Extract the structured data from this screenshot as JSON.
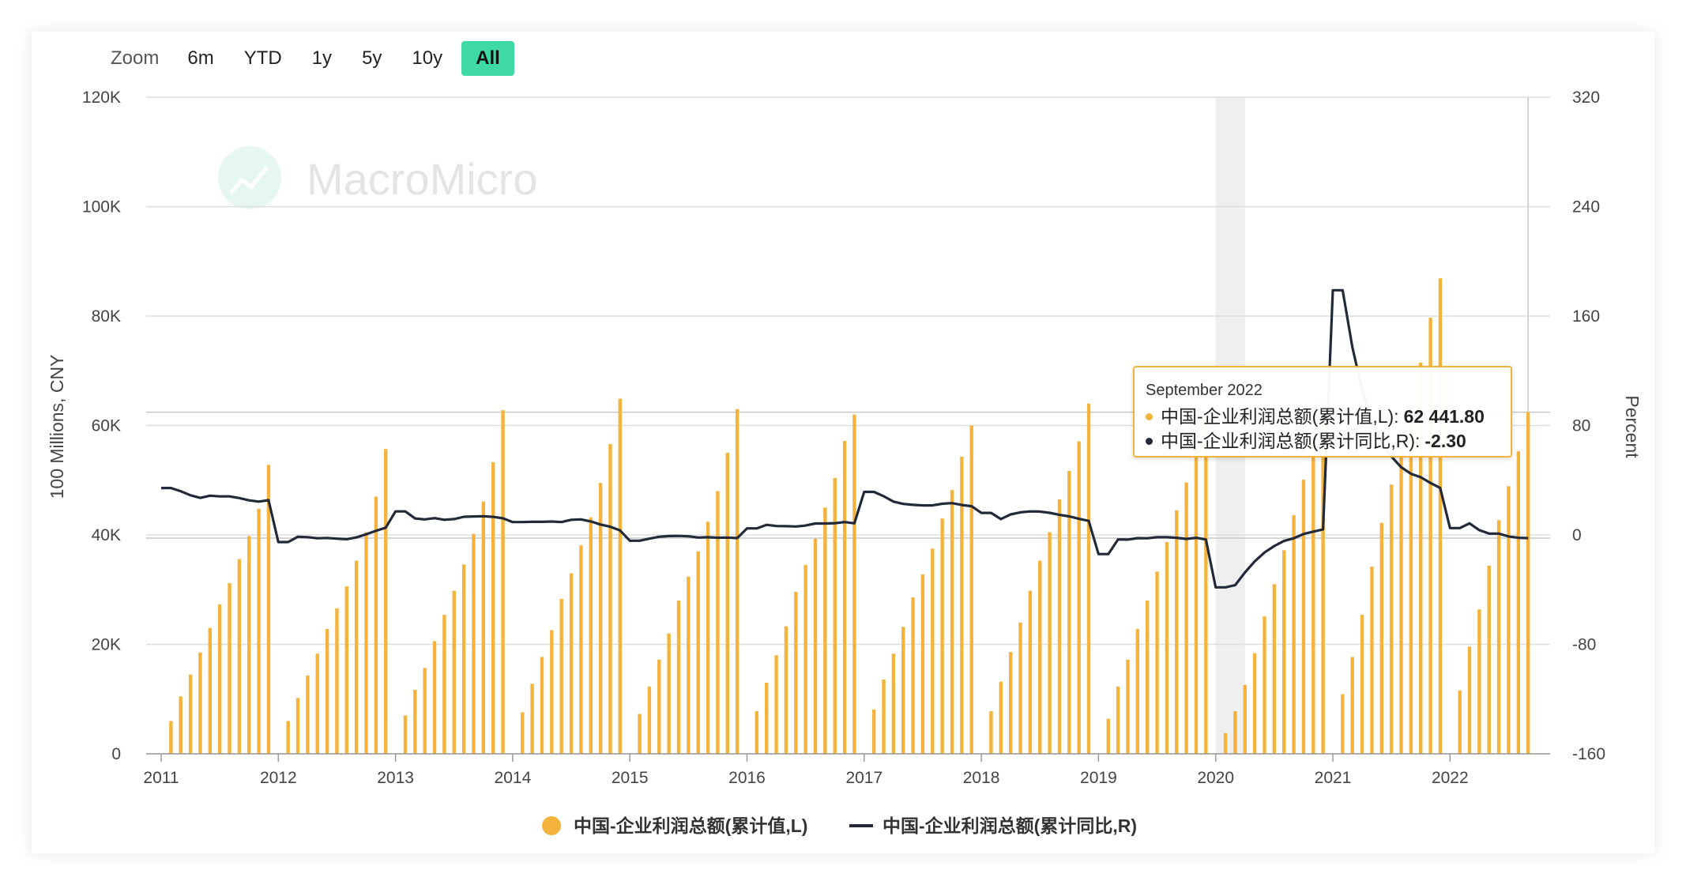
{
  "toolbar": {
    "zoom_label": "Zoom",
    "buttons": [
      "6m",
      "YTD",
      "1y",
      "5y",
      "10y",
      "All"
    ],
    "active": "All"
  },
  "watermark": "MacroMicro",
  "tooltip": {
    "title": "September 2022",
    "rows": [
      {
        "label": "中国-企业利润总额(累计值,L):",
        "value": "62 441.80",
        "color": "#f3b33d"
      },
      {
        "label": "中国-企业利润总额(累计同比,R):",
        "value": "-2.30",
        "color": "#222a3a"
      }
    ]
  },
  "legend": [
    {
      "label": "中国-企业利润总额(累计值,L)",
      "color": "#f3b33d"
    },
    {
      "label": "中国-企业利润总额(累计同比,R)",
      "color": "#222a3a"
    }
  ],
  "colors": {
    "bar": "#f3b33d",
    "line": "#222a3a",
    "accent": "#3fd9a6",
    "recession": "#efefef"
  },
  "chart_data": {
    "type": "bar+line",
    "y_left": {
      "label": "100 Millions, CNY",
      "ylim": [
        0,
        120000
      ],
      "ticks": [
        "0",
        "20K",
        "40K",
        "60K",
        "80K",
        "100K",
        "120K"
      ],
      "tick_values": [
        0,
        20000,
        40000,
        60000,
        80000,
        100000,
        120000
      ]
    },
    "y_right": {
      "label": "Percent",
      "ylim": [
        -160,
        320
      ],
      "ticks": [
        "-160",
        "-80",
        "0",
        "80",
        "160",
        "240",
        "320"
      ],
      "tick_values": [
        -160,
        -80,
        0,
        80,
        160,
        240,
        320
      ]
    },
    "x_ticks": [
      "2011",
      "2012",
      "2013",
      "2014",
      "2015",
      "2016",
      "2017",
      "2018",
      "2019",
      "2020",
      "2021",
      "2022"
    ],
    "x_range": [
      "2011-01",
      "2022-12"
    ],
    "recession_shading": {
      "from": "2020-01",
      "to": "2020-04"
    },
    "bar_series": {
      "name": "中国-企业利润总额(累计值,L)",
      "data": [
        [
          "2011-02",
          6000
        ],
        [
          "2011-03",
          10500
        ],
        [
          "2011-04",
          14500
        ],
        [
          "2011-05",
          18500
        ],
        [
          "2011-06",
          23000
        ],
        [
          "2011-07",
          27300
        ],
        [
          "2011-08",
          31200
        ],
        [
          "2011-09",
          35600
        ],
        [
          "2011-10",
          39800
        ],
        [
          "2011-11",
          44800
        ],
        [
          "2011-12",
          52800
        ],
        [
          "2012-02",
          6000
        ],
        [
          "2012-03",
          10200
        ],
        [
          "2012-04",
          14300
        ],
        [
          "2012-05",
          18300
        ],
        [
          "2012-06",
          22800
        ],
        [
          "2012-07",
          26600
        ],
        [
          "2012-08",
          30600
        ],
        [
          "2012-09",
          35300
        ],
        [
          "2012-10",
          40500
        ],
        [
          "2012-11",
          47000
        ],
        [
          "2012-12",
          55700
        ],
        [
          "2013-02",
          7000
        ],
        [
          "2013-03",
          11700
        ],
        [
          "2013-04",
          15700
        ],
        [
          "2013-05",
          20600
        ],
        [
          "2013-06",
          25400
        ],
        [
          "2013-07",
          29800
        ],
        [
          "2013-08",
          34600
        ],
        [
          "2013-09",
          40200
        ],
        [
          "2013-10",
          46100
        ],
        [
          "2013-11",
          53300
        ],
        [
          "2013-12",
          62800
        ],
        [
          "2014-02",
          7600
        ],
        [
          "2014-03",
          12800
        ],
        [
          "2014-04",
          17700
        ],
        [
          "2014-05",
          22600
        ],
        [
          "2014-06",
          28300
        ],
        [
          "2014-07",
          33000
        ],
        [
          "2014-08",
          38100
        ],
        [
          "2014-09",
          43200
        ],
        [
          "2014-10",
          49500
        ],
        [
          "2014-11",
          56600
        ],
        [
          "2014-12",
          64900
        ],
        [
          "2015-02",
          7300
        ],
        [
          "2015-03",
          12300
        ],
        [
          "2015-04",
          17200
        ],
        [
          "2015-05",
          22000
        ],
        [
          "2015-06",
          28000
        ],
        [
          "2015-07",
          32400
        ],
        [
          "2015-08",
          37000
        ],
        [
          "2015-09",
          42400
        ],
        [
          "2015-10",
          48000
        ],
        [
          "2015-11",
          55000
        ],
        [
          "2015-12",
          63000
        ],
        [
          "2016-02",
          7800
        ],
        [
          "2016-03",
          13000
        ],
        [
          "2016-04",
          18000
        ],
        [
          "2016-05",
          23300
        ],
        [
          "2016-06",
          29600
        ],
        [
          "2016-07",
          34500
        ],
        [
          "2016-08",
          39300
        ],
        [
          "2016-09",
          45000
        ],
        [
          "2016-10",
          50400
        ],
        [
          "2016-11",
          57200
        ],
        [
          "2016-12",
          62000
        ],
        [
          "2017-02",
          8100
        ],
        [
          "2017-03",
          13600
        ],
        [
          "2017-04",
          18300
        ],
        [
          "2017-05",
          23200
        ],
        [
          "2017-06",
          28600
        ],
        [
          "2017-07",
          32800
        ],
        [
          "2017-08",
          37500
        ],
        [
          "2017-09",
          43000
        ],
        [
          "2017-10",
          48200
        ],
        [
          "2017-11",
          54300
        ],
        [
          "2017-12",
          60000
        ],
        [
          "2018-02",
          7800
        ],
        [
          "2018-03",
          13200
        ],
        [
          "2018-04",
          18600
        ],
        [
          "2018-05",
          24000
        ],
        [
          "2018-06",
          29800
        ],
        [
          "2018-07",
          35300
        ],
        [
          "2018-08",
          40500
        ],
        [
          "2018-09",
          46500
        ],
        [
          "2018-10",
          51700
        ],
        [
          "2018-11",
          57100
        ],
        [
          "2018-12",
          64000
        ],
        [
          "2019-02",
          6400
        ],
        [
          "2019-03",
          12300
        ],
        [
          "2019-04",
          17200
        ],
        [
          "2019-05",
          22800
        ],
        [
          "2019-06",
          28000
        ],
        [
          "2019-07",
          33300
        ],
        [
          "2019-08",
          38700
        ],
        [
          "2019-09",
          44500
        ],
        [
          "2019-10",
          49600
        ],
        [
          "2019-11",
          56000
        ],
        [
          "2019-12",
          62000
        ],
        [
          "2020-02",
          3800
        ],
        [
          "2020-03",
          7800
        ],
        [
          "2020-04",
          12600
        ],
        [
          "2020-05",
          18400
        ],
        [
          "2020-06",
          25100
        ],
        [
          "2020-07",
          31000
        ],
        [
          "2020-08",
          37200
        ],
        [
          "2020-09",
          43600
        ],
        [
          "2020-10",
          50100
        ],
        [
          "2020-11",
          56700
        ],
        [
          "2020-12",
          64500
        ],
        [
          "2021-02",
          10900
        ],
        [
          "2021-03",
          17700
        ],
        [
          "2021-04",
          25400
        ],
        [
          "2021-05",
          34200
        ],
        [
          "2021-06",
          42200
        ],
        [
          "2021-07",
          49200
        ],
        [
          "2021-08",
          56000
        ],
        [
          "2021-09",
          63400
        ],
        [
          "2021-10",
          71500
        ],
        [
          "2021-11",
          79700
        ],
        [
          "2021-12",
          86900
        ],
        [
          "2022-02",
          11600
        ],
        [
          "2022-03",
          19600
        ],
        [
          "2022-04",
          26400
        ],
        [
          "2022-05",
          34400
        ],
        [
          "2022-06",
          42700
        ],
        [
          "2022-07",
          48900
        ],
        [
          "2022-08",
          55300
        ],
        [
          "2022-09",
          62441.8
        ]
      ]
    },
    "line_series": {
      "name": "中国-企业利润总额(累计同比,R)",
      "data": [
        [
          "2011-01",
          34.3
        ],
        [
          "2011-02",
          34.3
        ],
        [
          "2011-03",
          32
        ],
        [
          "2011-04",
          29
        ],
        [
          "2011-05",
          27.1
        ],
        [
          "2011-06",
          28.7
        ],
        [
          "2011-07",
          28.2
        ],
        [
          "2011-08",
          28.2
        ],
        [
          "2011-09",
          27
        ],
        [
          "2011-10",
          25.3
        ],
        [
          "2011-11",
          24.4
        ],
        [
          "2011-12",
          25.4
        ],
        [
          "2012-01",
          -5.2
        ],
        [
          "2012-02",
          -5.2
        ],
        [
          "2012-03",
          -1.3
        ],
        [
          "2012-04",
          -1.6
        ],
        [
          "2012-05",
          -2.4
        ],
        [
          "2012-06",
          -2.2
        ],
        [
          "2012-07",
          -2.7
        ],
        [
          "2012-08",
          -3.1
        ],
        [
          "2012-09",
          -1.8
        ],
        [
          "2012-10",
          0.5
        ],
        [
          "2012-11",
          3
        ],
        [
          "2012-12",
          5.3
        ],
        [
          "2013-01",
          17.2
        ],
        [
          "2013-02",
          17.2
        ],
        [
          "2013-03",
          12.1
        ],
        [
          "2013-04",
          11.4
        ],
        [
          "2013-05",
          12.3
        ],
        [
          "2013-06",
          11.1
        ],
        [
          "2013-07",
          11.6
        ],
        [
          "2013-08",
          13.3
        ],
        [
          "2013-09",
          13.5
        ],
        [
          "2013-10",
          13.7
        ],
        [
          "2013-11",
          13.2
        ],
        [
          "2013-12",
          12.2
        ],
        [
          "2014-01",
          9.4
        ],
        [
          "2014-02",
          9.4
        ],
        [
          "2014-03",
          9.6
        ],
        [
          "2014-04",
          9.6
        ],
        [
          "2014-05",
          9.8
        ],
        [
          "2014-06",
          9.4
        ],
        [
          "2014-07",
          11.1
        ],
        [
          "2014-08",
          11.4
        ],
        [
          "2014-09",
          9.9
        ],
        [
          "2014-10",
          7.6
        ],
        [
          "2014-11",
          6
        ],
        [
          "2014-12",
          3.3
        ],
        [
          "2015-01",
          -4.2
        ],
        [
          "2015-02",
          -4.2
        ],
        [
          "2015-03",
          -2.7
        ],
        [
          "2015-04",
          -1.3
        ],
        [
          "2015-05",
          -0.8
        ],
        [
          "2015-06",
          -0.7
        ],
        [
          "2015-07",
          -1
        ],
        [
          "2015-08",
          -1.9
        ],
        [
          "2015-09",
          -1.7
        ],
        [
          "2015-10",
          -2
        ],
        [
          "2015-11",
          -1.9
        ],
        [
          "2015-12",
          -2.3
        ],
        [
          "2016-01",
          4.8
        ],
        [
          "2016-02",
          4.8
        ],
        [
          "2016-03",
          7.4
        ],
        [
          "2016-04",
          6.5
        ],
        [
          "2016-05",
          6.4
        ],
        [
          "2016-06",
          6.2
        ],
        [
          "2016-07",
          6.9
        ],
        [
          "2016-08",
          8.4
        ],
        [
          "2016-09",
          8.4
        ],
        [
          "2016-10",
          8.6
        ],
        [
          "2016-11",
          9.4
        ],
        [
          "2016-12",
          8.5
        ],
        [
          "2017-01",
          31.5
        ],
        [
          "2017-02",
          31.5
        ],
        [
          "2017-03",
          28.3
        ],
        [
          "2017-04",
          24.4
        ],
        [
          "2017-05",
          22.7
        ],
        [
          "2017-06",
          22
        ],
        [
          "2017-07",
          21.6
        ],
        [
          "2017-08",
          21.6
        ],
        [
          "2017-09",
          22.8
        ],
        [
          "2017-10",
          23.3
        ],
        [
          "2017-11",
          21.9
        ],
        [
          "2017-12",
          21
        ],
        [
          "2018-01",
          16.1
        ],
        [
          "2018-02",
          16.1
        ],
        [
          "2018-03",
          11.6
        ],
        [
          "2018-04",
          15
        ],
        [
          "2018-05",
          16.5
        ],
        [
          "2018-06",
          17.2
        ],
        [
          "2018-07",
          17.1
        ],
        [
          "2018-08",
          16.2
        ],
        [
          "2018-09",
          14.7
        ],
        [
          "2018-10",
          13.6
        ],
        [
          "2018-11",
          11.8
        ],
        [
          "2018-12",
          10.3
        ],
        [
          "2019-01",
          -14
        ],
        [
          "2019-02",
          -14
        ],
        [
          "2019-03",
          -3.3
        ],
        [
          "2019-04",
          -3.4
        ],
        [
          "2019-05",
          -2.3
        ],
        [
          "2019-06",
          -2.4
        ],
        [
          "2019-07",
          -1.7
        ],
        [
          "2019-08",
          -1.7
        ],
        [
          "2019-09",
          -2.1
        ],
        [
          "2019-10",
          -2.9
        ],
        [
          "2019-11",
          -2.1
        ],
        [
          "2019-12",
          -3.3
        ],
        [
          "2020-01",
          -38.3
        ],
        [
          "2020-02",
          -38.3
        ],
        [
          "2020-03",
          -36.7
        ],
        [
          "2020-04",
          -27.4
        ],
        [
          "2020-05",
          -19.3
        ],
        [
          "2020-06",
          -12.8
        ],
        [
          "2020-07",
          -8.1
        ],
        [
          "2020-08",
          -4.4
        ],
        [
          "2020-09",
          -2.4
        ],
        [
          "2020-10",
          0.7
        ],
        [
          "2020-11",
          2.4
        ],
        [
          "2020-12",
          4.1
        ],
        [
          "2021-01",
          178.9
        ],
        [
          "2021-02",
          178.9
        ],
        [
          "2021-03",
          137.3
        ],
        [
          "2021-04",
          106
        ],
        [
          "2021-05",
          83.4
        ],
        [
          "2021-06",
          66.9
        ],
        [
          "2021-07",
          57.3
        ],
        [
          "2021-08",
          49.5
        ],
        [
          "2021-09",
          44.7
        ],
        [
          "2021-10",
          42.2
        ],
        [
          "2021-11",
          38
        ],
        [
          "2021-12",
          34.3
        ],
        [
          "2022-01",
          5
        ],
        [
          "2022-02",
          5
        ],
        [
          "2022-03",
          8.5
        ],
        [
          "2022-04",
          3.5
        ],
        [
          "2022-05",
          1
        ],
        [
          "2022-06",
          1
        ],
        [
          "2022-07",
          -1.1
        ],
        [
          "2022-08",
          -2.1
        ],
        [
          "2022-09",
          -2.3
        ]
      ]
    },
    "hover": {
      "date": "2022-09"
    }
  }
}
